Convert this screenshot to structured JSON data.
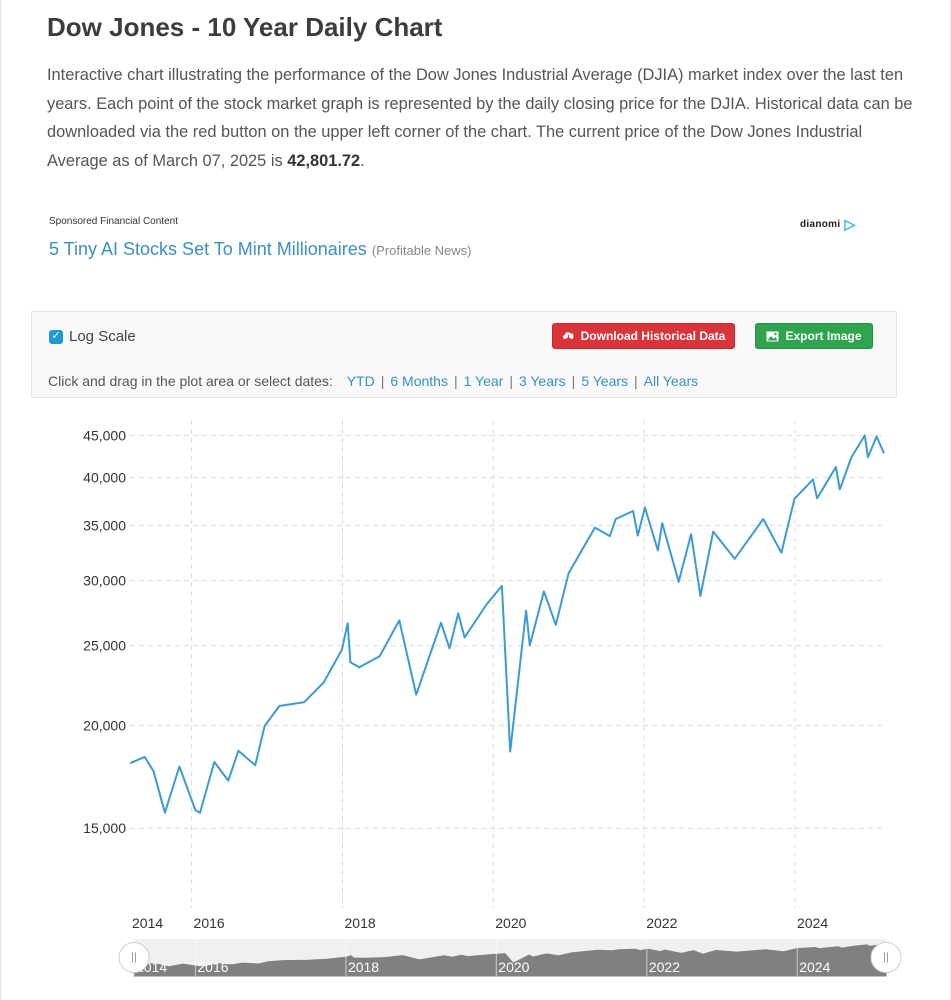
{
  "header": {
    "title": "Dow Jones - 10 Year Daily Chart",
    "description_text": "Interactive chart illustrating the performance of the Dow Jones Industrial Average (DJIA) market index over the last ten years. Each point of the stock market graph is represented by the daily closing price for the DJIA. Historical data can be downloaded via the red button on the upper left corner of the chart. The current price of the Dow Jones Industrial Average as of March 07, 2025 is ",
    "current_price": "42,801.72",
    "description_end": "."
  },
  "sponsor": {
    "label": "Sponsored Financial Content",
    "logo": "dianomi",
    "link_text": "5 Tiny AI Stocks Set To Mint Millionaires",
    "source": "(Profitable News)"
  },
  "controls": {
    "log_scale_label": "Log Scale",
    "log_scale_checked": true,
    "download_label": "Download Historical Data",
    "export_label": "Export Image",
    "download_color": "#d9343a",
    "export_color": "#2ea44f",
    "range_prompt": "Click and drag in the plot area or select dates:",
    "ranges": [
      "YTD",
      "6 Months",
      "1 Year",
      "3 Years",
      "5 Years",
      "All Years"
    ]
  },
  "chart_data": {
    "type": "line",
    "title": "",
    "xlabel": "",
    "ylabel": "",
    "y_scale": "log",
    "ylim": [
      12000,
      47000
    ],
    "xlim": [
      "2015-03-09",
      "2025-03-07"
    ],
    "grid": true,
    "line_color": "#3d9ad6",
    "y_ticks": [
      "15,000",
      "20,000",
      "25,000",
      "30,000",
      "35,000",
      "40,000",
      "45,000"
    ],
    "y_tick_values": [
      15000,
      20000,
      25000,
      30000,
      35000,
      40000,
      45000
    ],
    "x_ticks": [
      "2014",
      "2016",
      "2018",
      "2020",
      "2022",
      "2024"
    ],
    "x": [
      "2015-03-09",
      "2015-05-19",
      "2015-07-01",
      "2015-08-25",
      "2015-11-03",
      "2016-01-20",
      "2016-02-11",
      "2016-04-20",
      "2016-06-27",
      "2016-08-15",
      "2016-11-04",
      "2016-12-20",
      "2017-03-01",
      "2017-06-30",
      "2017-10-02",
      "2017-12-29",
      "2018-01-26",
      "2018-02-08",
      "2018-03-23",
      "2018-06-30",
      "2018-10-03",
      "2018-12-24",
      "2019-04-23",
      "2019-06-03",
      "2019-07-15",
      "2019-08-15",
      "2019-11-29",
      "2020-02-12",
      "2020-03-23",
      "2020-06-08",
      "2020-06-26",
      "2020-09-02",
      "2020-10-30",
      "2020-12-31",
      "2021-05-07",
      "2021-07-19",
      "2021-08-16",
      "2021-11-08",
      "2021-12-01",
      "2022-01-04",
      "2022-03-08",
      "2022-03-29",
      "2022-06-17",
      "2022-08-16",
      "2022-09-30",
      "2022-12-01",
      "2023-03-15",
      "2023-07-31",
      "2023-10-27",
      "2023-12-29",
      "2024-03-28",
      "2024-04-17",
      "2024-07-17",
      "2024-08-05",
      "2024-09-30",
      "2024-12-04",
      "2024-12-19",
      "2025-01-30",
      "2025-03-07"
    ],
    "values": [
      17995,
      18312,
      17596,
      15666,
      17828,
      15766,
      15660,
      18053,
      17140,
      18636,
      17888,
      19974,
      21115,
      21350,
      22557,
      24719,
      26617,
      23860,
      23533,
      24271,
      26828,
      21792,
      26656,
      24815,
      27359,
      25579,
      28051,
      29551,
      18591,
      27572,
      25016,
      29100,
      26501,
      30606,
      34778,
      33962,
      35625,
      36432,
      34022,
      36800,
      32633,
      35228,
      29888,
      34152,
      28725,
      34395,
      31875,
      35630,
      32418,
      37690,
      39807,
      37753,
      41198,
      38703,
      42330,
      45014,
      42342,
      44882,
      42801.72
    ]
  },
  "navigator": {
    "x_ticks": [
      "2014",
      "2016",
      "2018",
      "2020",
      "2022",
      "2024"
    ]
  }
}
